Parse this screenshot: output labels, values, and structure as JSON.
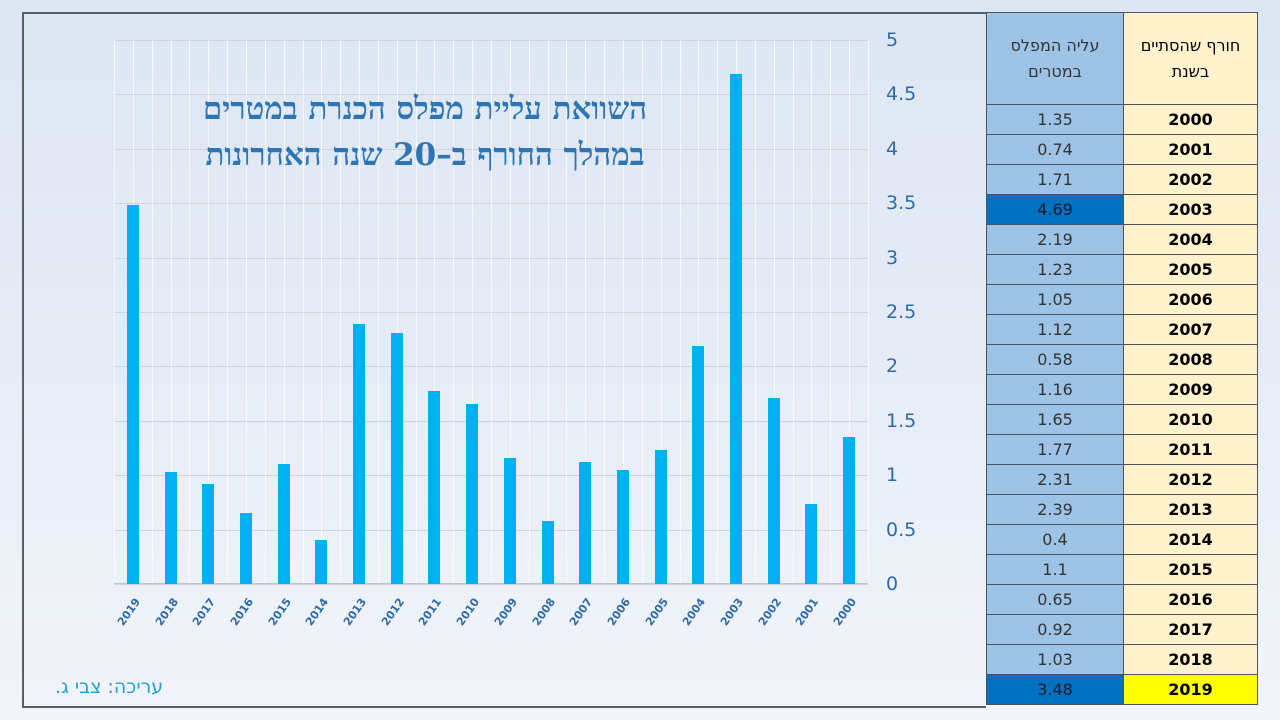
{
  "title": {
    "line1": "השוואת עליית מפלס הכנרת במטרים",
    "line2": "במהלך החורף ב–20 שנה האחרונות"
  },
  "credit": "עריכה: צבי ג.",
  "table": {
    "header_value": "עליה המפלס במטרים",
    "header_year": "חורף שהסתיים בשנת",
    "rows": [
      {
        "year": "2000",
        "value": "1.35"
      },
      {
        "year": "2001",
        "value": "0.74"
      },
      {
        "year": "2002",
        "value": "1.71"
      },
      {
        "year": "2003",
        "value": "4.69",
        "highlight_value": true
      },
      {
        "year": "2004",
        "value": "2.19"
      },
      {
        "year": "2005",
        "value": "1.23"
      },
      {
        "year": "2006",
        "value": "1.05"
      },
      {
        "year": "2007",
        "value": "1.12"
      },
      {
        "year": "2008",
        "value": "0.58"
      },
      {
        "year": "2009",
        "value": "1.16"
      },
      {
        "year": "2010",
        "value": "1.65"
      },
      {
        "year": "2011",
        "value": "1.77"
      },
      {
        "year": "2012",
        "value": "2.31"
      },
      {
        "year": "2013",
        "value": "2.39"
      },
      {
        "year": "2014",
        "value": "0.4"
      },
      {
        "year": "2015",
        "value": "1.1"
      },
      {
        "year": "2016",
        "value": "0.65"
      },
      {
        "year": "2017",
        "value": "0.92"
      },
      {
        "year": "2018",
        "value": "1.03"
      },
      {
        "year": "2019",
        "value": "3.48",
        "highlight_value": true,
        "highlight_year": true
      }
    ]
  },
  "colors": {
    "bar": "#00b0f0",
    "title": "#2e75b6",
    "axis_text": "#2e6aa8",
    "value_cell": "#9dc3e6",
    "value_cell_highlight": "#0070c0",
    "year_cell": "#fff2cc",
    "year_cell_highlight": "#ffff00"
  },
  "chart_data": {
    "type": "bar",
    "title": "השוואת עליית מפלס הכנרת במטרים במהלך החורף ב–20 שנה האחרונות",
    "xlabel": "",
    "ylabel": "",
    "categories": [
      "2019",
      "2018",
      "2017",
      "2016",
      "2015",
      "2014",
      "2013",
      "2012",
      "2011",
      "2010",
      "2009",
      "2008",
      "2007",
      "2006",
      "2005",
      "2004",
      "2003",
      "2002",
      "2001",
      "2000"
    ],
    "values": [
      3.48,
      1.03,
      0.92,
      0.65,
      1.1,
      0.4,
      2.39,
      2.31,
      1.77,
      1.65,
      1.16,
      0.58,
      1.12,
      1.05,
      1.23,
      2.19,
      4.69,
      1.71,
      0.74,
      1.35
    ],
    "ylim": [
      0,
      5
    ],
    "yticks": [
      "0",
      "0.5",
      "1",
      "1.5",
      "2",
      "2.5",
      "3",
      "3.5",
      "4",
      "4.5",
      "5"
    ],
    "y_axis_position": "right",
    "grid": true,
    "legend": null
  }
}
